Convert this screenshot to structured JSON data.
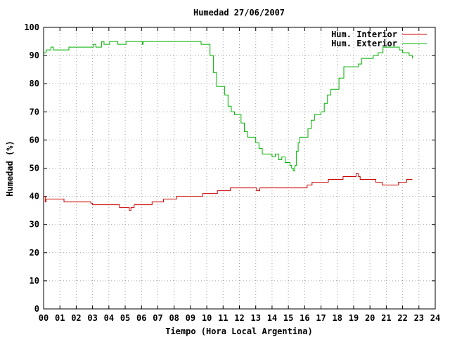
{
  "chart_data": {
    "type": "line",
    "title": "Humedad 27/06/2007",
    "xlabel": "Tiempo (Hora Local Argentina)",
    "ylabel": "Humedad (%)",
    "xlim": [
      0,
      24
    ],
    "ylim": [
      0,
      100
    ],
    "x_ticks": [
      "00",
      "01",
      "02",
      "03",
      "04",
      "05",
      "06",
      "07",
      "08",
      "09",
      "10",
      "11",
      "12",
      "13",
      "14",
      "15",
      "16",
      "17",
      "18",
      "19",
      "20",
      "21",
      "22",
      "23",
      "24"
    ],
    "y_ticks": [
      0,
      10,
      20,
      30,
      40,
      50,
      60,
      70,
      80,
      90,
      100
    ],
    "grid": true,
    "legend_position": "top-right",
    "series": [
      {
        "name": "Hum. Interior",
        "color": "#cc0000",
        "points": [
          [
            0.0,
            40
          ],
          [
            0.1,
            38
          ],
          [
            0.15,
            39
          ],
          [
            1.2,
            39
          ],
          [
            1.25,
            38
          ],
          [
            2.6,
            38
          ],
          [
            2.9,
            37.5
          ],
          [
            3.0,
            37
          ],
          [
            4.6,
            37
          ],
          [
            4.65,
            36
          ],
          [
            5.2,
            36
          ],
          [
            5.25,
            35
          ],
          [
            5.35,
            36
          ],
          [
            5.5,
            36
          ],
          [
            5.55,
            37
          ],
          [
            6.6,
            37
          ],
          [
            6.65,
            38
          ],
          [
            7.3,
            38
          ],
          [
            7.35,
            39
          ],
          [
            8.1,
            39
          ],
          [
            8.15,
            40
          ],
          [
            9.7,
            40
          ],
          [
            9.75,
            41
          ],
          [
            10.6,
            41
          ],
          [
            10.65,
            42
          ],
          [
            11.4,
            42
          ],
          [
            11.45,
            43
          ],
          [
            13.0,
            43
          ],
          [
            13.05,
            42
          ],
          [
            13.2,
            42
          ],
          [
            13.25,
            43
          ],
          [
            16.1,
            43
          ],
          [
            16.15,
            44
          ],
          [
            16.4,
            44
          ],
          [
            16.45,
            45
          ],
          [
            17.4,
            45
          ],
          [
            17.45,
            46
          ],
          [
            18.3,
            46
          ],
          [
            18.35,
            47
          ],
          [
            19.1,
            47
          ],
          [
            19.15,
            48
          ],
          [
            19.3,
            47
          ],
          [
            19.4,
            46
          ],
          [
            20.3,
            46
          ],
          [
            20.35,
            45
          ],
          [
            20.7,
            45
          ],
          [
            20.75,
            44
          ],
          [
            21.7,
            44
          ],
          [
            21.75,
            45
          ],
          [
            22.2,
            45
          ],
          [
            22.25,
            46
          ],
          [
            22.6,
            46
          ]
        ]
      },
      {
        "name": "Hum. Exterior",
        "color": "#00b000",
        "points": [
          [
            0.0,
            91
          ],
          [
            0.1,
            91
          ],
          [
            0.15,
            92
          ],
          [
            0.4,
            92
          ],
          [
            0.45,
            93
          ],
          [
            0.6,
            92
          ],
          [
            1.5,
            92
          ],
          [
            1.55,
            93
          ],
          [
            3.0,
            93
          ],
          [
            3.05,
            94
          ],
          [
            3.2,
            93
          ],
          [
            3.5,
            93
          ],
          [
            3.55,
            95
          ],
          [
            3.7,
            94
          ],
          [
            4.0,
            94
          ],
          [
            4.05,
            95
          ],
          [
            4.5,
            95
          ],
          [
            4.55,
            94
          ],
          [
            5.0,
            94
          ],
          [
            5.05,
            95
          ],
          [
            6.0,
            95
          ],
          [
            6.05,
            94
          ],
          [
            6.1,
            95
          ],
          [
            9.6,
            95
          ],
          [
            9.65,
            94
          ],
          [
            10.0,
            94
          ],
          [
            10.2,
            90
          ],
          [
            10.4,
            84
          ],
          [
            10.6,
            79
          ],
          [
            11.0,
            79
          ],
          [
            11.1,
            76
          ],
          [
            11.3,
            72
          ],
          [
            11.5,
            70
          ],
          [
            11.7,
            69
          ],
          [
            12.0,
            69
          ],
          [
            12.1,
            66
          ],
          [
            12.3,
            63
          ],
          [
            12.5,
            61
          ],
          [
            12.9,
            61
          ],
          [
            13.0,
            59
          ],
          [
            13.2,
            57
          ],
          [
            13.4,
            55
          ],
          [
            13.9,
            55
          ],
          [
            14.0,
            54
          ],
          [
            14.2,
            55
          ],
          [
            14.4,
            53
          ],
          [
            14.6,
            54
          ],
          [
            14.8,
            52
          ],
          [
            15.0,
            52
          ],
          [
            15.1,
            51
          ],
          [
            15.2,
            50
          ],
          [
            15.3,
            49
          ],
          [
            15.4,
            51
          ],
          [
            15.5,
            56
          ],
          [
            15.6,
            59
          ],
          [
            15.7,
            61
          ],
          [
            16.0,
            61
          ],
          [
            16.2,
            64
          ],
          [
            16.4,
            67
          ],
          [
            16.6,
            69
          ],
          [
            17.0,
            70
          ],
          [
            17.2,
            73
          ],
          [
            17.4,
            76
          ],
          [
            17.6,
            78
          ],
          [
            17.9,
            78
          ],
          [
            18.1,
            82
          ],
          [
            18.4,
            86
          ],
          [
            19.0,
            86
          ],
          [
            19.3,
            87
          ],
          [
            19.5,
            89
          ],
          [
            20.0,
            89
          ],
          [
            20.2,
            90
          ],
          [
            20.5,
            91
          ],
          [
            20.8,
            93
          ],
          [
            21.5,
            93
          ],
          [
            21.8,
            92
          ],
          [
            22.0,
            91
          ],
          [
            22.4,
            90
          ],
          [
            22.6,
            89
          ]
        ]
      }
    ]
  }
}
